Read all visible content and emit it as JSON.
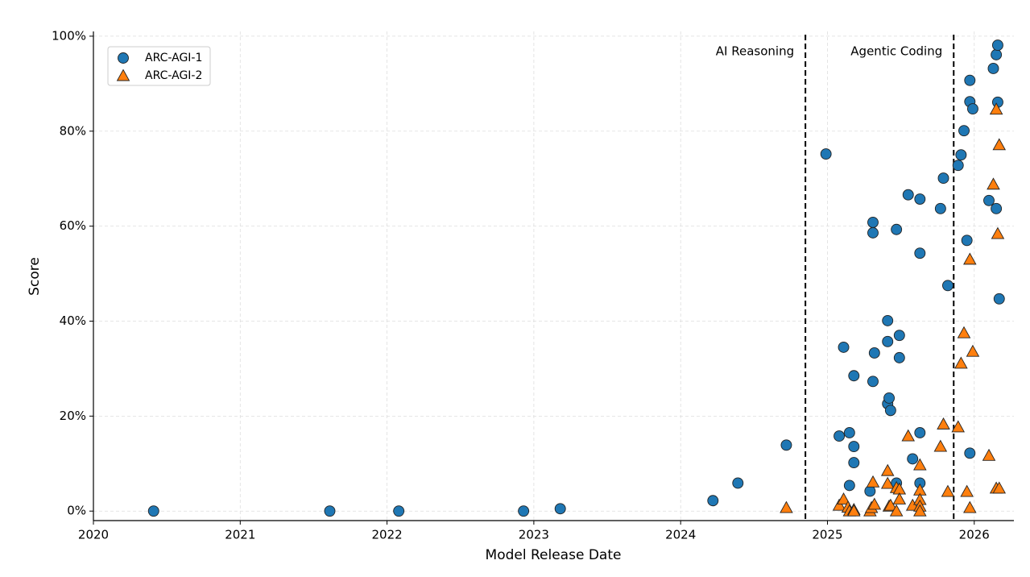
{
  "chart_data": {
    "type": "scatter",
    "x_label": "Model Release Date",
    "y_label": "Score",
    "xlim": [
      2020,
      2026.27
    ],
    "ylim": [
      -2,
      101
    ],
    "xticks": [
      2020,
      2021,
      2022,
      2023,
      2024,
      2025,
      2026
    ],
    "yticks": [
      {
        "value": 0,
        "label": "0%"
      },
      {
        "value": 20,
        "label": "20%"
      },
      {
        "value": 40,
        "label": "40%"
      },
      {
        "value": 60,
        "label": "60%"
      },
      {
        "value": 80,
        "label": "80%"
      },
      {
        "value": 100,
        "label": "100%"
      }
    ],
    "grid": true,
    "legend": "upper left",
    "vlines": [
      {
        "x": 2024.85,
        "label": "AI Reasoning"
      },
      {
        "x": 2025.86,
        "label": "Agentic Coding"
      }
    ],
    "series": [
      {
        "name": "ARC-AGI-1",
        "color": "#1f77b4",
        "marker": "circle",
        "x": [
          2020.41,
          2021.61,
          2022.08,
          2022.93,
          2023.18,
          2024.22,
          2024.39,
          2024.72,
          2024.99,
          2025.08,
          2025.11,
          2025.15,
          2025.15,
          2025.18,
          2025.18,
          2025.18,
          2025.29,
          2025.31,
          2025.31,
          2025.32,
          2025.31,
          2025.41,
          2025.41,
          2025.41,
          2025.42,
          2025.43,
          2025.47,
          2025.47,
          2025.49,
          2025.49,
          2025.55,
          2025.58,
          2025.63,
          2025.63,
          2025.63,
          2025.63,
          2025.77,
          2025.79,
          2025.82,
          2025.89,
          2025.91,
          2025.93,
          2025.95,
          2025.97,
          2025.97,
          2025.99,
          2025.97,
          2026.1,
          2026.13,
          2026.15,
          2026.16,
          2026.16,
          2026.15,
          2026.17
        ],
        "values": [
          0,
          0,
          0,
          0,
          0.5,
          2.2,
          5.9,
          13.9,
          75.2,
          15.8,
          34.5,
          16.5,
          5.4,
          28.5,
          13.6,
          10.2,
          4.2,
          60.8,
          58.6,
          33.3,
          27.3,
          40.1,
          35.7,
          22.6,
          23.8,
          21.2,
          59.3,
          5.9,
          37.0,
          32.3,
          66.6,
          11.0,
          65.7,
          54.3,
          16.5,
          5.9,
          63.7,
          70.1,
          47.5,
          72.8,
          75.0,
          80.1,
          57.0,
          90.7,
          86.2,
          84.7,
          12.2,
          65.4,
          93.2,
          96.1,
          98.1,
          86.1,
          63.7,
          44.7
        ]
      },
      {
        "name": "ARC-AGI-2",
        "color": "#ff7f0e",
        "marker": "triangle",
        "x": [
          2024.72,
          2025.08,
          2025.11,
          2025.14,
          2025.15,
          2025.18,
          2025.18,
          2025.29,
          2025.3,
          2025.31,
          2025.32,
          2025.41,
          2025.41,
          2025.42,
          2025.43,
          2025.47,
          2025.47,
          2025.49,
          2025.49,
          2025.55,
          2025.58,
          2025.63,
          2025.63,
          2025.63,
          2025.63,
          2025.63,
          2025.77,
          2025.79,
          2025.82,
          2025.89,
          2025.91,
          2025.93,
          2025.95,
          2025.97,
          2025.97,
          2025.99,
          2026.1,
          2026.13,
          2026.15,
          2026.15,
          2026.16,
          2026.17,
          2026.17
        ],
        "values": [
          0.7,
          1.2,
          2.5,
          0.8,
          0,
          0.3,
          0,
          0,
          0.7,
          6.1,
          1.4,
          8.5,
          5.8,
          1.0,
          1.2,
          0,
          4.9,
          4.6,
          2.5,
          15.8,
          1.2,
          9.7,
          4.4,
          2.4,
          1.0,
          0,
          13.6,
          18.3,
          4.1,
          17.7,
          31.1,
          37.5,
          4.1,
          0.7,
          53.0,
          33.6,
          11.7,
          68.8,
          4.8,
          84.6,
          58.4,
          4.8,
          77.1
        ]
      }
    ]
  }
}
